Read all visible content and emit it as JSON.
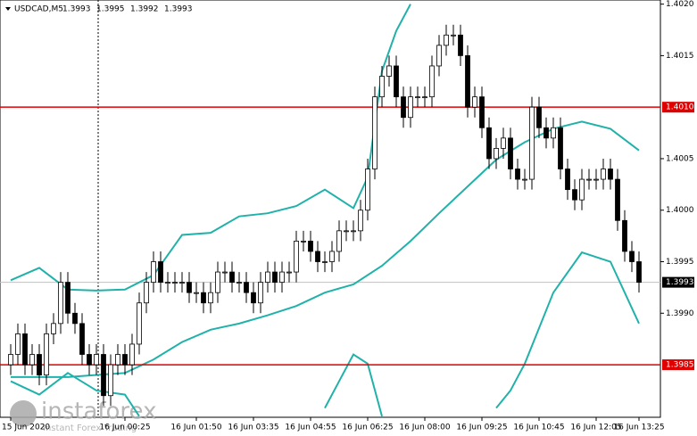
{
  "chart_data": {
    "type": "candlestick",
    "header": {
      "symbol": "USDCAD,M5",
      "quote": [
        {
          "value": 1.3993,
          "label": "1.3993"
        },
        {
          "value": 1.3995,
          "label": "1.3995"
        },
        {
          "value": 1.3992,
          "label": "1.3992"
        },
        {
          "value": 1.3993,
          "label": "1.3993"
        }
      ]
    },
    "categories": [
      "15 Jun 2020",
      null,
      null,
      null,
      null,
      null,
      null,
      null,
      null,
      null,
      null,
      null,
      null,
      null,
      null,
      null,
      "16 Jun 00:25",
      null,
      null,
      null,
      null,
      null,
      null,
      null,
      null,
      null,
      "16 Jun 01:50",
      null,
      null,
      null,
      null,
      null,
      null,
      null,
      "16 Jun 03:35",
      null,
      null,
      null,
      null,
      null,
      null,
      null,
      "16 Jun 04:55",
      null,
      null,
      null,
      null,
      null,
      null,
      null,
      "16 Jun 06:25",
      null,
      null,
      null,
      null,
      null,
      null,
      null,
      "16 Jun 08:00",
      null,
      null,
      null,
      null,
      null,
      null,
      null,
      "16 Jun 09:25",
      null,
      null,
      null,
      null,
      null,
      null,
      null,
      "16 Jun 10:45",
      null,
      null,
      null,
      null,
      null,
      null,
      null,
      "16 Jun 12:05",
      null,
      null,
      null,
      null,
      null,
      "16 Jun 13:25"
    ],
    "open": [
      1.3985,
      1.3986,
      1.3988,
      1.3985,
      1.3986,
      1.3984,
      1.3988,
      1.3989,
      1.3993,
      1.399,
      1.3989,
      1.3986,
      1.3985,
      1.3986,
      1.3982,
      1.3985,
      1.3986,
      1.3985,
      1.3987,
      1.3991,
      1.3993,
      1.3995,
      1.3993,
      1.3993,
      1.3993,
      1.3993,
      1.3992,
      1.3992,
      1.3991,
      1.3992,
      1.3994,
      1.3994,
      1.3993,
      1.3993,
      1.3992,
      1.3991,
      1.3993,
      1.3994,
      1.3993,
      1.3994,
      1.3994,
      1.3997,
      1.3997,
      1.3996,
      1.3995,
      1.3995,
      1.3996,
      1.3998,
      1.3998,
      1.3998,
      1.4,
      1.4004,
      1.4011,
      1.4013,
      1.4014,
      1.4011,
      1.4009,
      1.4011,
      1.4011,
      1.4011,
      1.4014,
      1.4016,
      1.4017,
      1.4017,
      1.4015,
      1.401,
      1.4011,
      1.4008,
      1.4005,
      1.4006,
      1.4007,
      1.4004,
      1.4003,
      1.4003,
      1.401,
      1.4008,
      1.4007,
      1.4008,
      1.4004,
      1.4002,
      1.4001,
      1.4003,
      1.4003,
      1.4003,
      1.4004,
      1.4003,
      1.3999,
      1.3996,
      1.3995
    ],
    "high": [
      1.3987,
      1.3989,
      1.3989,
      1.3987,
      1.3987,
      1.3989,
      1.399,
      1.3994,
      1.3994,
      1.3991,
      1.399,
      1.3987,
      1.3987,
      1.3987,
      1.3986,
      1.3987,
      1.3987,
      1.3988,
      1.3992,
      1.3994,
      1.3996,
      1.3996,
      1.3994,
      1.3994,
      1.3994,
      1.3994,
      1.3993,
      1.3993,
      1.3993,
      1.3995,
      1.3995,
      1.3995,
      1.3994,
      1.3994,
      1.3993,
      1.3994,
      1.3995,
      1.3995,
      1.3995,
      1.3995,
      1.3998,
      1.3998,
      1.3998,
      1.3997,
      1.3996,
      1.3997,
      1.3999,
      1.3999,
      1.3999,
      1.4001,
      1.4005,
      1.4012,
      1.4014,
      1.4015,
      1.4015,
      1.4012,
      1.4012,
      1.4012,
      1.4012,
      1.4015,
      1.4017,
      1.4018,
      1.4018,
      1.4018,
      1.4016,
      1.4012,
      1.4012,
      1.4009,
      1.4007,
      1.4008,
      1.4008,
      1.4005,
      1.4004,
      1.4011,
      1.4011,
      1.4009,
      1.4009,
      1.4009,
      1.4005,
      1.4003,
      1.4004,
      1.4004,
      1.4004,
      1.4005,
      1.4005,
      1.4004,
      1.4,
      1.3997,
      1.3996
    ],
    "low": [
      1.3984,
      1.3985,
      1.3984,
      1.3984,
      1.3983,
      1.3983,
      1.3987,
      1.3988,
      1.3989,
      1.3988,
      1.3985,
      1.3984,
      1.3984,
      1.3981,
      1.3981,
      1.3984,
      1.3984,
      1.3984,
      1.3986,
      1.399,
      1.3992,
      1.3992,
      1.3992,
      1.3992,
      1.3992,
      1.3991,
      1.3991,
      1.399,
      1.399,
      1.3991,
      1.3993,
      1.3992,
      1.3992,
      1.3991,
      1.399,
      1.399,
      1.3992,
      1.3992,
      1.3992,
      1.3993,
      1.3993,
      1.3996,
      1.3995,
      1.3994,
      1.3994,
      1.3994,
      1.3995,
      1.3997,
      1.3997,
      1.3997,
      1.3999,
      1.4003,
      1.401,
      1.4012,
      1.401,
      1.4008,
      1.4008,
      1.401,
      1.401,
      1.401,
      1.4013,
      1.4015,
      1.4016,
      1.4014,
      1.4009,
      1.4009,
      1.4007,
      1.4004,
      1.4004,
      1.4005,
      1.4003,
      1.4002,
      1.4002,
      1.4002,
      1.4007,
      1.4006,
      1.4006,
      1.4003,
      1.4001,
      1.4,
      1.4,
      1.4002,
      1.4002,
      1.4002,
      1.4002,
      1.3998,
      1.3995,
      1.3994,
      1.3992
    ],
    "close": [
      1.3986,
      1.3988,
      1.3985,
      1.3986,
      1.3984,
      1.3988,
      1.3989,
      1.3993,
      1.399,
      1.3989,
      1.3986,
      1.3985,
      1.3986,
      1.3982,
      1.3985,
      1.3986,
      1.3985,
      1.3987,
      1.3991,
      1.3993,
      1.3995,
      1.3993,
      1.3993,
      1.3993,
      1.3993,
      1.3992,
      1.3992,
      1.3991,
      1.3992,
      1.3994,
      1.3994,
      1.3993,
      1.3993,
      1.3992,
      1.3991,
      1.3993,
      1.3994,
      1.3993,
      1.3994,
      1.3994,
      1.3997,
      1.3997,
      1.3996,
      1.3995,
      1.3995,
      1.3996,
      1.3998,
      1.3998,
      1.3998,
      1.4,
      1.4004,
      1.4011,
      1.4013,
      1.4014,
      1.4011,
      1.4009,
      1.4011,
      1.4011,
      1.4011,
      1.4014,
      1.4016,
      1.4017,
      1.4017,
      1.4015,
      1.401,
      1.4011,
      1.4008,
      1.4005,
      1.4006,
      1.4007,
      1.4004,
      1.4003,
      1.4003,
      1.401,
      1.4008,
      1.4007,
      1.4008,
      1.4004,
      1.4002,
      1.4001,
      1.4003,
      1.4003,
      1.4003,
      1.4004,
      1.4003,
      1.3999,
      1.3996,
      1.3995,
      1.3993
    ],
    "bands": [
      {
        "color": "#20b2aa",
        "x": [
          0,
          4,
          8,
          12,
          16,
          20,
          24,
          28,
          32,
          36,
          40,
          44,
          48,
          50,
          52,
          54,
          56
        ],
        "values": [
          1.39932,
          1.39944,
          1.39923,
          1.39922,
          1.39923,
          1.39937,
          1.39976,
          1.39978,
          1.39994,
          1.39997,
          1.40004,
          1.4002,
          1.40002,
          1.40032,
          1.40135,
          1.40174,
          1.402
        ]
      },
      {
        "color": "#20b2aa",
        "x": [
          0,
          8,
          16,
          20,
          24,
          28,
          32,
          36,
          40,
          44,
          48,
          52,
          56,
          60,
          64,
          68,
          72,
          76,
          80,
          84,
          88
        ],
        "values": [
          1.39838,
          1.39838,
          1.39842,
          1.39855,
          1.39872,
          1.39884,
          1.3989,
          1.39898,
          1.39907,
          1.3992,
          1.39928,
          1.39946,
          1.3997,
          1.39997,
          1.40023,
          1.40049,
          1.40066,
          1.40079,
          1.40086,
          1.40079,
          1.40058
        ]
      },
      {
        "color": "#20b2aa",
        "x": [
          0,
          4,
          8,
          12,
          16,
          18,
          30,
          44,
          46,
          48,
          50,
          52,
          60,
          68,
          70,
          72,
          76,
          80,
          84,
          88
        ],
        "values": [
          1.39834,
          1.39821,
          1.39842,
          1.39825,
          1.39821,
          1.398,
          null,
          1.39808,
          1.39834,
          1.3986,
          1.39851,
          1.398,
          null,
          1.39808,
          1.39825,
          1.39851,
          1.3992,
          1.39959,
          1.3995,
          1.3989
        ]
      }
    ],
    "levels": [
      {
        "value": 1.401,
        "label": "1.4010",
        "color": "#e00000"
      },
      {
        "value": 1.3985,
        "label": "1.3985",
        "color": "#e00000"
      }
    ],
    "current": {
      "value": 1.3993,
      "label": "1.3993"
    },
    "ylim": [
      1.39799,
      1.40204
    ],
    "yticks": [
      {
        "value": 1.402,
        "label": "1.4020"
      },
      {
        "value": 1.4015,
        "label": "1.4015"
      },
      {
        "value": 1.4005,
        "label": "1.4005"
      },
      {
        "value": 1.4,
        "label": "1.4000"
      },
      {
        "value": 1.3995,
        "label": "1.3995"
      },
      {
        "value": 1.399,
        "label": "1.3990"
      }
    ],
    "watermark": {
      "brand": "instaforex",
      "tagline": "Instant Forex Trading"
    }
  }
}
